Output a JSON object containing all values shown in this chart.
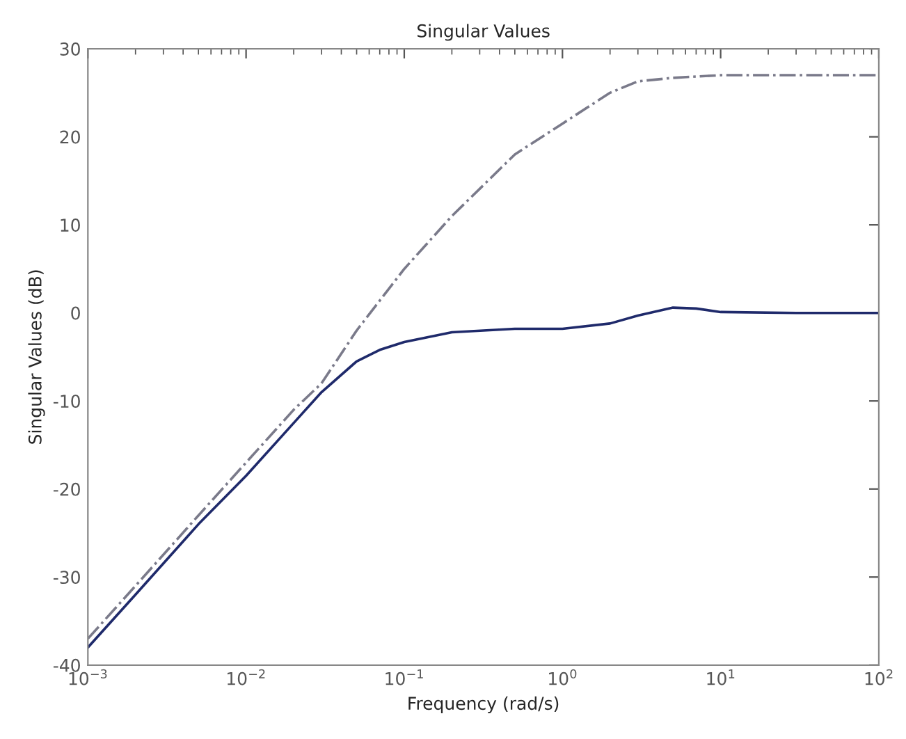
{
  "chart_data": {
    "type": "line",
    "title": "Singular Values",
    "xlabel": "Frequency (rad/s)",
    "ylabel": "Singular Values (dB)",
    "log": "x",
    "grid": false,
    "legend": false,
    "xlim": [
      0.001,
      100
    ],
    "ylim": [
      -40,
      30
    ],
    "xticks": [
      {
        "value": 0.001,
        "label": "10$^{−3}$"
      },
      {
        "value": 0.01,
        "label": "10$^{−2}$"
      },
      {
        "value": 0.1,
        "label": "10$^{−1}$"
      },
      {
        "value": 1,
        "label": "10$^{0}$"
      },
      {
        "value": 10,
        "label": "10$^{1}$"
      },
      {
        "value": 100,
        "label": "10$^{2}$"
      }
    ],
    "yticks": [
      -40,
      -30,
      -20,
      -10,
      0,
      10,
      20,
      30
    ],
    "series": [
      {
        "color": "#7a7a8a",
        "line_style": "dashdot",
        "x": [
          0.001,
          0.002,
          0.005,
          0.01,
          0.02,
          0.03,
          0.05,
          0.1,
          0.2,
          0.5,
          1,
          2,
          3,
          5,
          10,
          30,
          100
        ],
        "values": [
          -37,
          -31,
          -23,
          -17,
          -11,
          -8,
          -2,
          5,
          11,
          18,
          21.5,
          25,
          26.3,
          26.7,
          27,
          27,
          27
        ]
      },
      {
        "color": "#1f2a6b",
        "line_style": "solid",
        "x": [
          0.001,
          0.002,
          0.005,
          0.01,
          0.02,
          0.03,
          0.05,
          0.07,
          0.1,
          0.2,
          0.5,
          1,
          2,
          3,
          5,
          7,
          10,
          30,
          100
        ],
        "values": [
          -38,
          -32,
          -24,
          -18.5,
          -12.5,
          -9,
          -5.5,
          -4.2,
          -3.3,
          -2.2,
          -1.8,
          -1.8,
          -1.2,
          -0.3,
          0.6,
          0.5,
          0.1,
          0,
          0
        ]
      }
    ]
  }
}
